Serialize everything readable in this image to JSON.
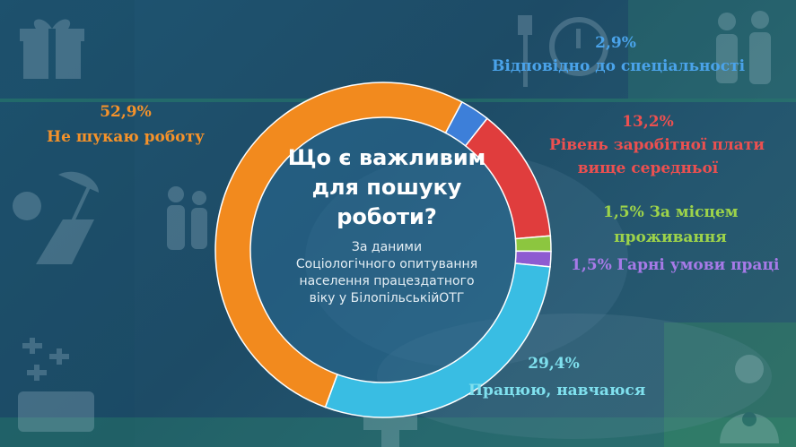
{
  "center": {
    "title_line1": "Що є важливим",
    "title_line2": "для пошуку",
    "title_line3": "роботи?",
    "sub_line1": "За даними",
    "sub_line2": "Соціологічного опитування",
    "sub_line3": "населення працездатного",
    "sub_line4": "віку у БілопільськійОТГ"
  },
  "labels": {
    "s0_pct": "2,9%",
    "s0_line1": "Відповідно до спеціальності",
    "s1_pct": "13,2%",
    "s1_line1": "Рівень заробітної плати",
    "s1_line2": "вище середньої",
    "s2_pct": "1,5%",
    "s2_line1": "За місцем",
    "s2_line2": "проживання",
    "s3_pct": "1,5%",
    "s3_line1": "Гарні умови праці",
    "s4_pct": "29,4%",
    "s4_line1": "Працюю, навчаюся",
    "s5_pct": "52,9%",
    "s5_line1": "Не шукаю роботу"
  },
  "chart_data": {
    "type": "pie",
    "variant": "donut",
    "title": "Що є важливим для пошуку роботи?",
    "subtitle": "За даними Соціологічного опитування населення працездатного віку у БілопільськійОТГ",
    "categories": [
      "Відповідно до спеціальності",
      "Рівень заробітної плати вище середньої",
      "За місцем проживання",
      "Гарні умови праці",
      "Працюю, навчаюся",
      "Не шукаю роботу"
    ],
    "values": [
      2.9,
      13.2,
      1.5,
      1.5,
      29.4,
      52.9
    ],
    "value_labels": [
      "2,9%",
      "13,2%",
      "1,5%",
      "1,5%",
      "29,4%",
      "52,9%"
    ],
    "colors": [
      "#3d7fd9",
      "#e03d3d",
      "#8cc63f",
      "#8e5bd1",
      "#39bde3",
      "#f28a1e"
    ],
    "start_angle_deg": 28,
    "direction": "clockwise",
    "legend": "none"
  }
}
